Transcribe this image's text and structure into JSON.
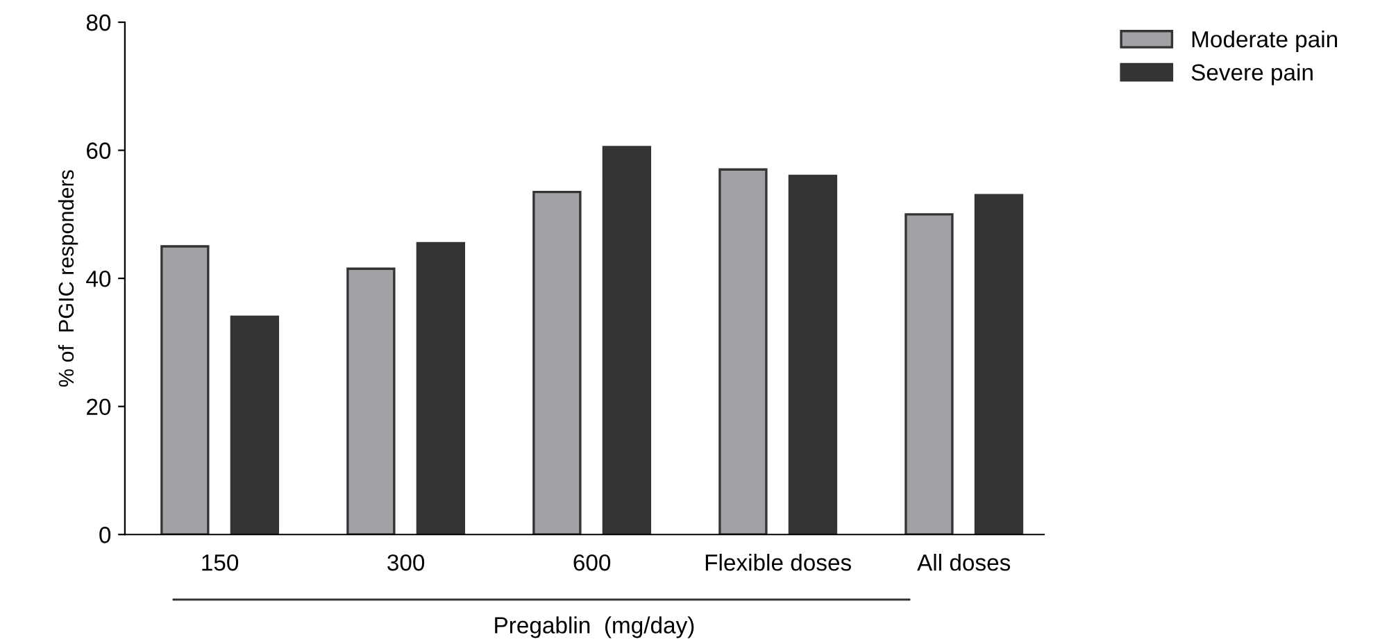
{
  "chart_data": {
    "type": "bar",
    "ylabel": "% of  PGIC responders",
    "xlabel": "Pregablin  (mg/day)",
    "categories": [
      "150",
      "300",
      "600",
      "Flexible doses",
      "All doses"
    ],
    "series": [
      {
        "name": "Moderate pain",
        "color": "#a2a1a6",
        "values": [
          45,
          41.5,
          53.5,
          57,
          50
        ]
      },
      {
        "name": "Severe pain",
        "color": "#333333",
        "values": [
          34,
          45.5,
          60.5,
          56,
          53
        ]
      }
    ],
    "ylim": [
      0,
      80
    ],
    "yticks": [
      0,
      20,
      40,
      60,
      80
    ],
    "grid": false,
    "legend": "top right"
  }
}
